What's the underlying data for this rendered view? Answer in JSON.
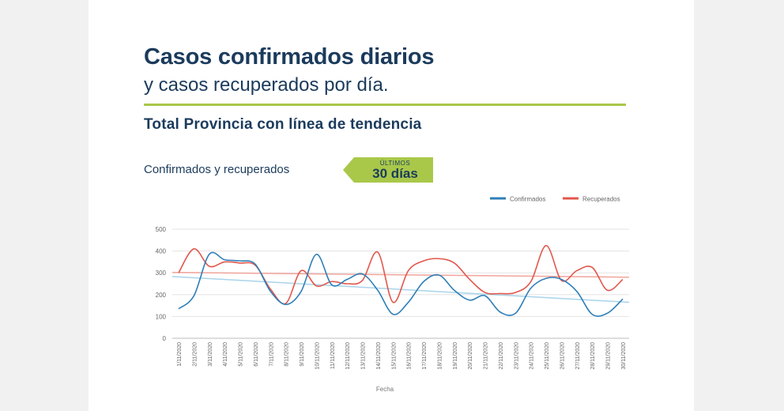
{
  "header": {
    "title": "Casos confirmados diarios",
    "subtitle": "y casos recuperados por día.",
    "section_title": "Total Provincia con línea de tendencia",
    "chart_label": "Confirmados y recuperados",
    "badge_top": "ÚLTIMOS",
    "badge_main": "30 días"
  },
  "colors": {
    "brand_dark": "#1b3b5c",
    "accent_green": "#a9c84a",
    "confirmados": "#2f7fb8",
    "recuperados": "#e2574c",
    "trend_confirmados": "#a8d4ea",
    "trend_recuperados": "#f2a49c"
  },
  "chart_data": {
    "type": "line",
    "title": "",
    "xlabel": "Fecha",
    "ylabel": "",
    "ylim": [
      0,
      500
    ],
    "yticks": [
      0,
      100,
      200,
      300,
      400,
      500
    ],
    "grid": true,
    "legend_position": "top-right",
    "x": [
      "1/11/2020",
      "2/11/2020",
      "3/11/2020",
      "4/11/2020",
      "5/11/2020",
      "6/11/2020",
      "7/11/2020",
      "8/11/2020",
      "9/11/2020",
      "10/11/2020",
      "11/11/2020",
      "12/11/2020",
      "13/11/2020",
      "14/11/2020",
      "15/11/2020",
      "16/11/2020",
      "17/11/2020",
      "18/11/2020",
      "19/11/2020",
      "20/11/2020",
      "21/11/2020",
      "22/11/2020",
      "23/11/2020",
      "24/11/2020",
      "25/11/2020",
      "26/11/2020",
      "27/11/2020",
      "28/11/2020",
      "29/11/2020",
      "30/11/2020"
    ],
    "series": [
      {
        "name": "Confirmados",
        "color": "#2f7fb8",
        "values": [
          135,
          195,
          385,
          360,
          355,
          340,
          215,
          155,
          215,
          385,
          245,
          270,
          295,
          220,
          110,
          165,
          260,
          290,
          220,
          175,
          195,
          120,
          115,
          230,
          275,
          270,
          215,
          110,
          115,
          180
        ]
      },
      {
        "name": "Recuperados",
        "color": "#e2574c",
        "values": [
          300,
          410,
          330,
          350,
          345,
          335,
          225,
          160,
          310,
          240,
          260,
          250,
          265,
          395,
          165,
          310,
          355,
          365,
          345,
          270,
          210,
          205,
          210,
          260,
          425,
          265,
          310,
          325,
          220,
          270
        ]
      }
    ],
    "trendlines": [
      {
        "series": "Confirmados",
        "color": "#a8d4ea",
        "start": 283,
        "end": 165
      },
      {
        "series": "Recuperados",
        "color": "#f2a49c",
        "start": 302,
        "end": 280
      }
    ]
  }
}
